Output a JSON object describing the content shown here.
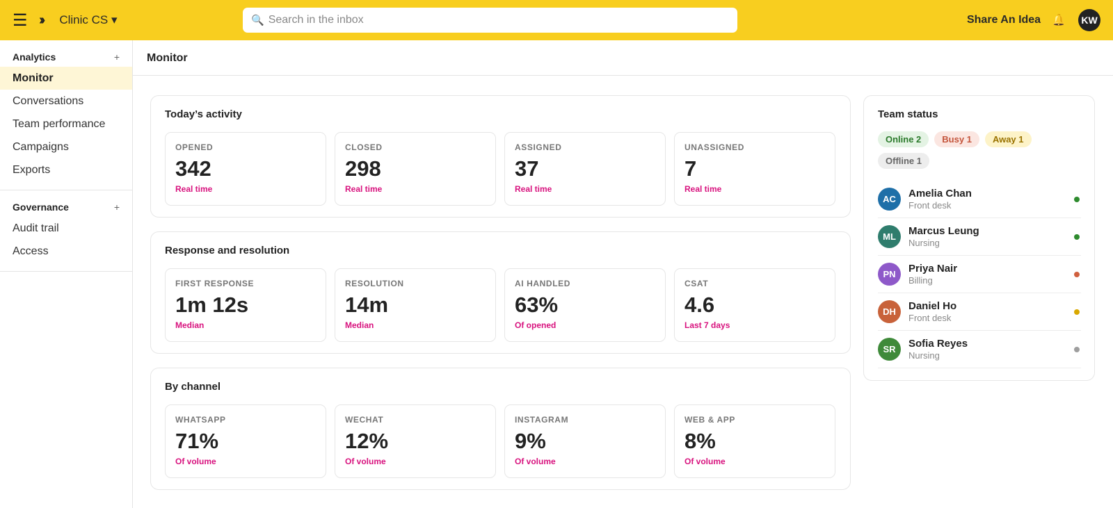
{
  "topbar": {
    "workspace": "Clinic CS ▾",
    "search_placeholder": "Search in the inbox",
    "share_label": "Share An Idea",
    "avatar": "KW"
  },
  "sidebar": {
    "sections": [
      {
        "title": "Analytics",
        "items": [
          "Monitor",
          "Conversations",
          "Team performance",
          "Campaigns",
          "Exports"
        ]
      },
      {
        "title": "Governance",
        "items": [
          "Audit trail",
          "Access"
        ]
      }
    ]
  },
  "main": {
    "title": "Monitor",
    "activity": {
      "title": "Today’s activity",
      "metrics": [
        {
          "label": "OPENED",
          "value": "342",
          "sub": "Real time"
        },
        {
          "label": "CLOSED",
          "value": "298",
          "sub": "Real time"
        },
        {
          "label": "ASSIGNED",
          "value": "37",
          "sub": "Real time"
        },
        {
          "label": "UNASSIGNED",
          "value": "7",
          "sub": "Real time"
        }
      ]
    },
    "response": {
      "title": "Response and resolution",
      "metrics": [
        {
          "label": "FIRST RESPONSE",
          "value": "1m 12s",
          "sub": "Median"
        },
        {
          "label": "RESOLUTION",
          "value": "14m",
          "sub": "Median"
        },
        {
          "label": "AI HANDLED",
          "value": "63%",
          "sub": "Of opened"
        },
        {
          "label": "CSAT",
          "value": "4.6",
          "sub": "Last 7 days"
        }
      ]
    },
    "channel": {
      "title": "By channel",
      "metrics": [
        {
          "label": "WHATSAPP",
          "value": "71%",
          "sub": "Of volume"
        },
        {
          "label": "WECHAT",
          "value": "12%",
          "sub": "Of volume"
        },
        {
          "label": "INSTAGRAM",
          "value": "9%",
          "sub": "Of volume"
        },
        {
          "label": "WEB & APP",
          "value": "8%",
          "sub": "Of volume"
        }
      ]
    }
  },
  "team": {
    "title": "Team status",
    "pills": {
      "online": "Online 2",
      "busy": "Busy 1",
      "away": "Away 1",
      "offline": "Offline 1"
    },
    "members": [
      {
        "initials": "AC",
        "name": "Amelia Chan",
        "role": "Front desk",
        "avatar_color": "#1E6FA8",
        "status_color": "#2E8B2E"
      },
      {
        "initials": "ML",
        "name": "Marcus Leung",
        "role": "Nursing",
        "avatar_color": "#2F7D6D",
        "status_color": "#2E8B2E"
      },
      {
        "initials": "PN",
        "name": "Priya Nair",
        "role": "Billing",
        "avatar_color": "#8E59C9",
        "status_color": "#D0603F"
      },
      {
        "initials": "DH",
        "name": "Daniel Ho",
        "role": "Front desk",
        "avatar_color": "#C8623A",
        "status_color": "#D9A800"
      },
      {
        "initials": "SR",
        "name": "Sofia Reyes",
        "role": "Nursing",
        "avatar_color": "#3F8A3A",
        "status_color": "#9E9E9E"
      }
    ]
  }
}
